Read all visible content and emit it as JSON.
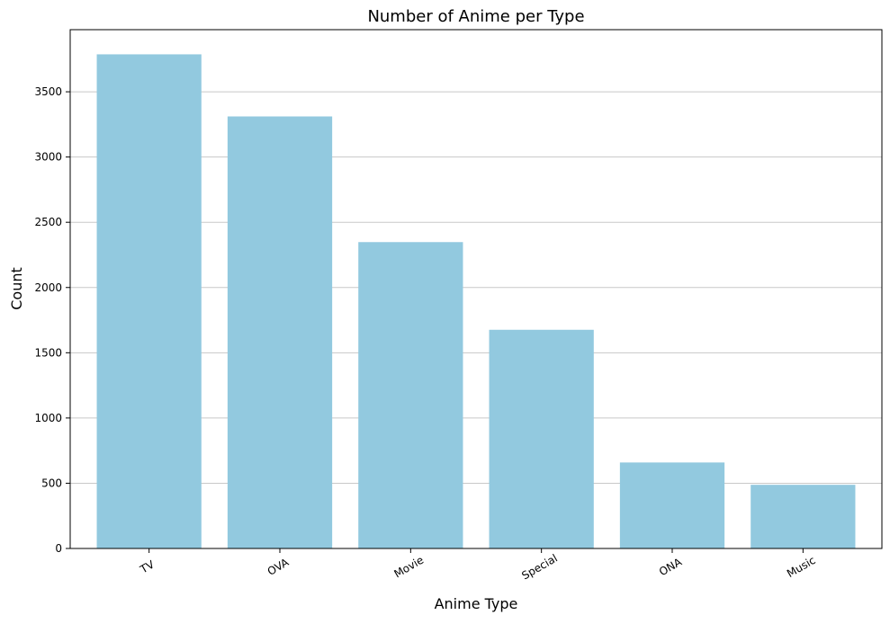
{
  "chart_data": {
    "type": "bar",
    "title": "Number of Anime per Type",
    "xlabel": "Anime Type",
    "ylabel": "Count",
    "categories": [
      "TV",
      "OVA",
      "Movie",
      "Special",
      "ONA",
      "Music"
    ],
    "values": [
      3787,
      3311,
      2348,
      1676,
      659,
      488
    ],
    "ylim": [
      0,
      3976
    ],
    "yticks": [
      0,
      500,
      1000,
      1500,
      2000,
      2500,
      3000,
      3500
    ],
    "grid": "y",
    "bar_color": "#92c9df",
    "grid_color": "#c8c8c8"
  }
}
